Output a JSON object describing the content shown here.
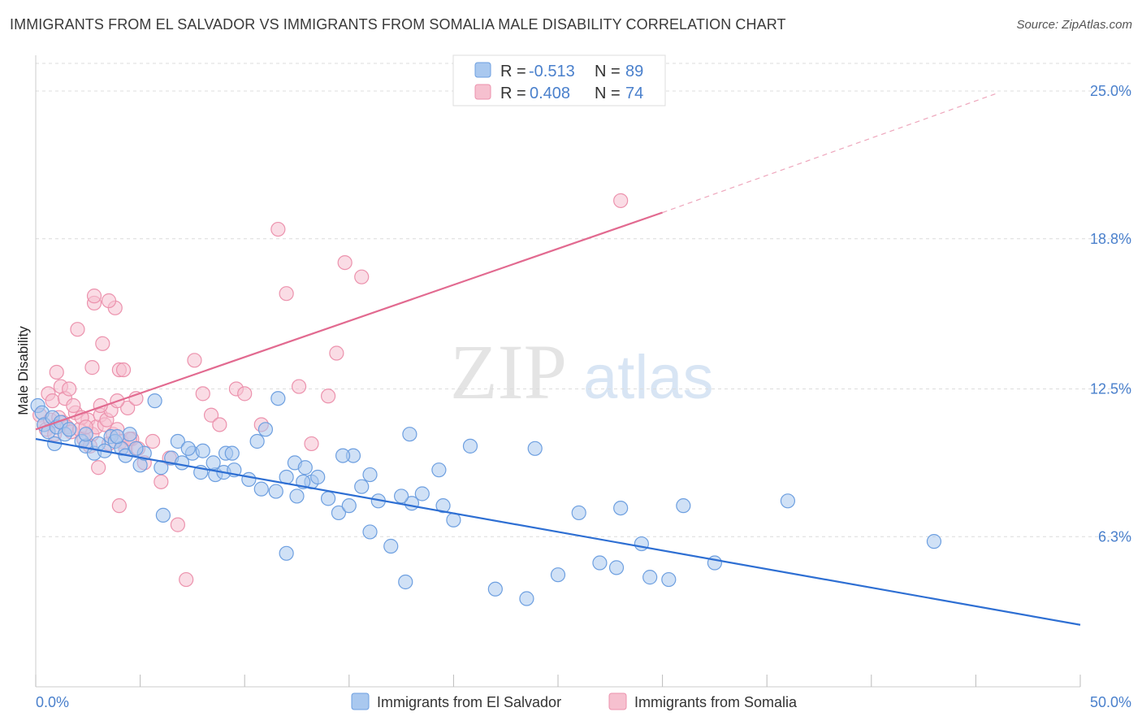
{
  "title": "IMMIGRANTS FROM EL SALVADOR VS IMMIGRANTS FROM SOMALIA MALE DISABILITY CORRELATION CHART",
  "source": "Source: ZipAtlas.com",
  "watermark": {
    "zip": "ZIP",
    "atlas": "atlas"
  },
  "colors": {
    "blue_fill": "#a9c8ef",
    "blue_stroke": "#6d9fe0",
    "blue_line": "#2e6fd3",
    "pink_fill": "#f6c0cf",
    "pink_stroke": "#ec92ad",
    "pink_line": "#e26a90",
    "tick_text": "#4a80cc",
    "grid": "#dcdcdc"
  },
  "legend": {
    "r_label": "R =",
    "n_label": "N =",
    "blue": {
      "r": "-0.513",
      "n": "89"
    },
    "pink": {
      "r": "0.408",
      "n": "74"
    }
  },
  "chart_data": {
    "type": "scatter",
    "title": "IMMIGRANTS FROM EL SALVADOR VS IMMIGRANTS FROM SOMALIA MALE DISABILITY CORRELATION CHART",
    "xlabel": "",
    "ylabel": "Male Disability",
    "xlim": [
      0,
      50
    ],
    "ylim": [
      0,
      26.5
    ],
    "x_tick_labels": [
      "0.0%",
      "50.0%"
    ],
    "y_ticks": [
      6.3,
      12.5,
      18.8,
      25.0
    ],
    "y_tick_labels": [
      "6.3%",
      "12.5%",
      "18.8%",
      "25.0%"
    ],
    "grid": "horizontal dashed",
    "legend_position": "top-center",
    "series": [
      {
        "name": "Immigrants from El Salvador",
        "color": "#a9c8ef",
        "trend": {
          "x": [
            0,
            50
          ],
          "y": [
            10.4,
            2.6
          ],
          "style": "solid"
        },
        "x": [
          0.1,
          0.3,
          0.4,
          0.6,
          0.8,
          1.0,
          1.2,
          1.4,
          1.6,
          2.2,
          2.4,
          2.8,
          3.0,
          3.3,
          3.6,
          3.8,
          4.1,
          4.3,
          4.5,
          5.0,
          5.2,
          6.0,
          6.5,
          7.0,
          7.5,
          8.0,
          8.6,
          9.0,
          9.5,
          10.2,
          10.8,
          11.5,
          12.0,
          12.5,
          13.2,
          14.0,
          14.5,
          15.0,
          16.0,
          16.4,
          17.0,
          17.7,
          18.0,
          18.5,
          19.5,
          20.0,
          22.0,
          23.5,
          25.0,
          26.0,
          27.0,
          28.0,
          29.0,
          31.0,
          32.5,
          36.0,
          43.0,
          6.1,
          12.0,
          12.4,
          12.9,
          13.5,
          15.2,
          16.0,
          17.5,
          17.9,
          19.3,
          20.8,
          23.9,
          27.8,
          29.4,
          30.3,
          11.6,
          6.8,
          7.3,
          7.9,
          9.1,
          10.6,
          8.5,
          9.4,
          12.8,
          14.7,
          15.6,
          11.0,
          4.8,
          5.7,
          3.9,
          2.4,
          0.9
        ],
        "y": [
          11.8,
          11.5,
          11.0,
          10.7,
          11.3,
          10.9,
          11.1,
          10.6,
          10.8,
          10.3,
          10.1,
          9.8,
          10.2,
          9.9,
          10.5,
          10.3,
          10.0,
          9.7,
          10.6,
          9.3,
          9.8,
          9.2,
          9.6,
          9.4,
          9.8,
          9.9,
          8.9,
          9.0,
          9.1,
          8.7,
          8.3,
          8.2,
          8.8,
          8.0,
          8.6,
          7.9,
          7.3,
          7.6,
          6.5,
          7.8,
          5.9,
          4.4,
          7.7,
          8.1,
          7.6,
          7.0,
          4.1,
          3.7,
          4.7,
          7.3,
          5.2,
          7.5,
          6.0,
          7.6,
          5.2,
          7.8,
          6.1,
          7.2,
          5.6,
          9.4,
          9.2,
          8.8,
          9.7,
          8.9,
          8.0,
          10.6,
          9.1,
          10.1,
          10.0,
          5.0,
          4.6,
          4.5,
          12.1,
          10.3,
          10.0,
          9.0,
          9.8,
          10.3,
          9.4,
          9.8,
          8.6,
          9.7,
          8.4,
          10.8,
          10.0,
          12.0,
          10.5,
          10.6,
          10.2
        ]
      },
      {
        "name": "Immigrants from Somalia",
        "color": "#f6c0cf",
        "trend": {
          "x": [
            0,
            30
          ],
          "y": [
            10.8,
            19.9
          ],
          "style": "solid"
        },
        "trend_extension": {
          "x": [
            30,
            46
          ],
          "y": [
            19.9,
            24.9
          ],
          "style": "dashed"
        },
        "x": [
          0.2,
          0.4,
          0.5,
          0.7,
          0.9,
          1.1,
          1.3,
          1.5,
          1.7,
          1.9,
          2.1,
          2.3,
          2.5,
          2.7,
          2.9,
          3.1,
          3.3,
          3.5,
          3.7,
          3.9,
          4.1,
          4.3,
          4.6,
          0.6,
          0.8,
          1.0,
          1.2,
          1.4,
          1.8,
          2.0,
          2.2,
          2.4,
          2.6,
          2.8,
          3.0,
          3.2,
          3.4,
          3.6,
          3.8,
          4.0,
          4.4,
          4.8,
          5.2,
          5.6,
          6.0,
          6.4,
          6.8,
          7.2,
          7.6,
          8.0,
          8.4,
          8.8,
          9.6,
          10.0,
          10.8,
          11.6,
          12.0,
          12.6,
          13.2,
          14.0,
          14.4,
          14.8,
          15.6,
          28.0,
          3.9,
          4.2,
          4.5,
          2.7,
          3.1,
          3.5,
          4.9,
          1.6,
          2.8,
          4.0
        ],
        "y": [
          11.4,
          11.0,
          10.8,
          11.2,
          10.6,
          11.3,
          11.1,
          10.9,
          10.7,
          11.5,
          10.8,
          10.4,
          11.2,
          10.6,
          10.9,
          11.4,
          11.0,
          10.2,
          10.6,
          10.8,
          10.3,
          10.0,
          10.4,
          12.3,
          12.0,
          13.2,
          12.6,
          12.1,
          11.8,
          15.0,
          11.3,
          10.9,
          10.1,
          16.1,
          9.2,
          14.4,
          11.2,
          11.6,
          15.9,
          13.3,
          11.7,
          12.1,
          9.4,
          10.3,
          8.6,
          9.6,
          6.8,
          4.5,
          13.7,
          12.3,
          11.4,
          11.0,
          12.5,
          12.3,
          11.0,
          19.2,
          16.5,
          12.6,
          10.2,
          12.2,
          14.0,
          17.8,
          17.2,
          20.4,
          12.0,
          13.3,
          10.4,
          13.4,
          11.8,
          16.2,
          10.0,
          12.5,
          16.4,
          7.6
        ]
      }
    ]
  },
  "bottom_legend": {
    "blue_label": "Immigrants from El Salvador",
    "pink_label": "Immigrants from Somalia"
  }
}
